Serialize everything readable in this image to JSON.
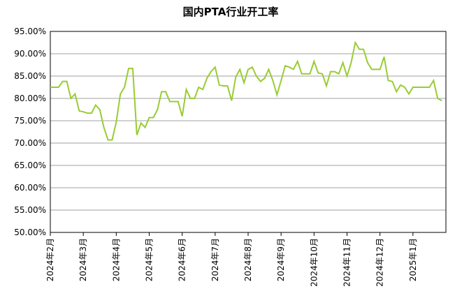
{
  "chart_data": {
    "type": "line",
    "title": "国内PTA行业开工率",
    "categories": [
      "2024年2月",
      null,
      null,
      null,
      null,
      null,
      null,
      null,
      "2024年3月",
      null,
      null,
      null,
      null,
      null,
      null,
      null,
      "2024年4月",
      null,
      null,
      null,
      null,
      null,
      null,
      null,
      "2024年5月",
      null,
      null,
      null,
      null,
      null,
      null,
      null,
      "2024年6月",
      null,
      null,
      null,
      null,
      null,
      null,
      null,
      "2024年7月",
      null,
      null,
      null,
      null,
      null,
      null,
      null,
      "2024年8月",
      null,
      null,
      null,
      null,
      null,
      null,
      null,
      "2024年9月",
      null,
      null,
      null,
      null,
      null,
      null,
      null,
      "2024年10月",
      null,
      null,
      null,
      null,
      null,
      null,
      null,
      "2024年11月",
      null,
      null,
      null,
      null,
      null,
      null,
      null,
      "2024年12月",
      null,
      null,
      null,
      null,
      null,
      null,
      null,
      "2025年1月",
      null,
      null,
      null,
      null,
      null,
      null,
      null
    ],
    "values": [
      82.5,
      82.5,
      82.5,
      83.8,
      83.8,
      80.0,
      81.0,
      77.2,
      77.0,
      76.7,
      76.7,
      78.5,
      77.5,
      73.5,
      70.7,
      70.7,
      74.7,
      81.0,
      82.5,
      86.7,
      86.7,
      71.8,
      74.5,
      73.5,
      75.7,
      75.7,
      77.5,
      81.5,
      81.5,
      79.3,
      79.3,
      79.3,
      76.0,
      82.0,
      80.0,
      80.0,
      82.5,
      82.0,
      84.5,
      86.0,
      87.0,
      83.0,
      82.8,
      82.8,
      79.5,
      84.8,
      86.5,
      83.5,
      86.5,
      87.0,
      85.0,
      83.8,
      84.5,
      86.5,
      84.0,
      80.8,
      84.0,
      87.3,
      87.0,
      86.5,
      88.3,
      85.5,
      85.5,
      85.5,
      88.3,
      85.7,
      85.5,
      82.8,
      86.0,
      86.0,
      85.5,
      88.0,
      85.0,
      88.0,
      92.5,
      91.0,
      91.0,
      88.0,
      86.5,
      86.5,
      86.5,
      89.3,
      84.0,
      83.8,
      81.5,
      83.0,
      82.5,
      81.0,
      82.5,
      82.5,
      82.5,
      82.5,
      82.5,
      84.0,
      80.0,
      79.5
    ],
    "color": "#99cc33",
    "ylim": [
      50,
      95
    ],
    "yticks": [
      {
        "value": 50,
        "label": "50.00%"
      },
      {
        "value": 55,
        "label": "55.00%"
      },
      {
        "value": 60,
        "label": "60.00%"
      },
      {
        "value": 65,
        "label": "65.00%"
      },
      {
        "value": 70,
        "label": "70.00%"
      },
      {
        "value": 75,
        "label": "75.00%"
      },
      {
        "value": 80,
        "label": "80.00%"
      },
      {
        "value": 85,
        "label": "85.00%"
      },
      {
        "value": 90,
        "label": "90.00%"
      },
      {
        "value": 95,
        "label": "95.00%"
      }
    ],
    "grid": true
  }
}
